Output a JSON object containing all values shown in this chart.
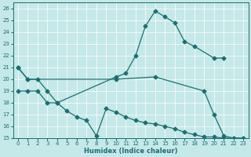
{
  "xlabel": "Humidex (Indice chaleur)",
  "bg_color": "#c5e8e8",
  "line_color": "#1a7070",
  "xlim": [
    -0.5,
    23.5
  ],
  "ylim": [
    15,
    26.5
  ],
  "yticks": [
    15,
    16,
    17,
    18,
    19,
    20,
    21,
    22,
    23,
    24,
    25,
    26
  ],
  "xticks": [
    0,
    1,
    2,
    3,
    4,
    5,
    6,
    7,
    8,
    9,
    10,
    11,
    12,
    13,
    14,
    15,
    16,
    17,
    18,
    19,
    20,
    21,
    22,
    23
  ],
  "series1_x": [
    0,
    1,
    2,
    3,
    4,
    10,
    11,
    12,
    13,
    14,
    15,
    16,
    17,
    18,
    20,
    21
  ],
  "series1_y": [
    21.0,
    20.0,
    20.0,
    19.0,
    18.0,
    20.2,
    20.5,
    22.0,
    24.5,
    25.8,
    25.3,
    24.8,
    23.2,
    22.8,
    21.8,
    21.8
  ],
  "series2_x": [
    0,
    1,
    2,
    3,
    4,
    5,
    6,
    7,
    8,
    9,
    10,
    11,
    12,
    13,
    14,
    15,
    16,
    17,
    18,
    19,
    20,
    21,
    22,
    23
  ],
  "series2_y": [
    19.0,
    19.0,
    19.0,
    18.0,
    18.0,
    17.3,
    16.8,
    16.5,
    15.2,
    17.5,
    17.2,
    16.8,
    16.5,
    16.3,
    16.2,
    16.0,
    15.8,
    15.5,
    15.3,
    15.1,
    15.1,
    15.0,
    15.0,
    15.0
  ],
  "series3_x": [
    0,
    1,
    10,
    14,
    19,
    20,
    21,
    22,
    23
  ],
  "series3_y": [
    21.0,
    20.0,
    20.0,
    20.2,
    19.0,
    17.0,
    15.2,
    15.0,
    15.0
  ]
}
